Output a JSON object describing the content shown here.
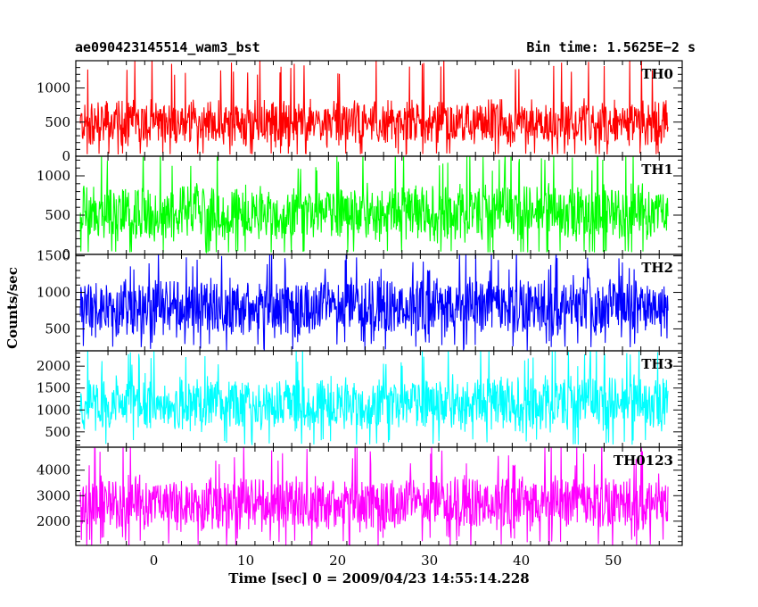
{
  "title_left": "ae090423145514_wam3_bst",
  "title_right": "Bin time: 1.5625E−2 s",
  "chart_data": {
    "type": "line",
    "xlabel": "Time [sec] 0 = 2009/04/23 14:55:14.228",
    "ylabel": "Counts/sec",
    "xlim": [
      -8.5,
      57.5
    ],
    "x_range": [
      -8,
      56
    ],
    "x_ticks": [
      0,
      10,
      20,
      30,
      40,
      50
    ],
    "panels": [
      {
        "name": "TH0",
        "color": "#ff0000",
        "ylim": [
          0,
          1400
        ],
        "y_ticks": [
          0,
          500,
          1000
        ],
        "mean": 480,
        "spread": 380,
        "floor": 40,
        "peak": 1400
      },
      {
        "name": "TH1",
        "color": "#00ff00",
        "ylim": [
          0,
          1250
        ],
        "y_ticks": [
          0,
          500,
          1000
        ],
        "mean": 530,
        "spread": 400,
        "floor": 40,
        "peak": 1250
      },
      {
        "name": "TH2",
        "color": "#0000ff",
        "ylim": [
          200,
          1520
        ],
        "y_ticks": [
          500,
          1000,
          1500
        ],
        "mean": 800,
        "spread": 450,
        "floor": 270,
        "peak": 1520
      },
      {
        "name": "TH3",
        "color": "#00ffff",
        "ylim": [
          150,
          2350
        ],
        "y_ticks": [
          500,
          1000,
          1500,
          2000
        ],
        "mean": 1150,
        "spread": 700,
        "floor": 280,
        "peak": 2350
      },
      {
        "name": "TH0123",
        "color": "#ff00ff",
        "ylim": [
          1050,
          4900
        ],
        "y_ticks": [
          2000,
          3000,
          4000
        ],
        "mean": 2700,
        "spread": 1200,
        "floor": 1100,
        "peak": 4900
      }
    ]
  }
}
